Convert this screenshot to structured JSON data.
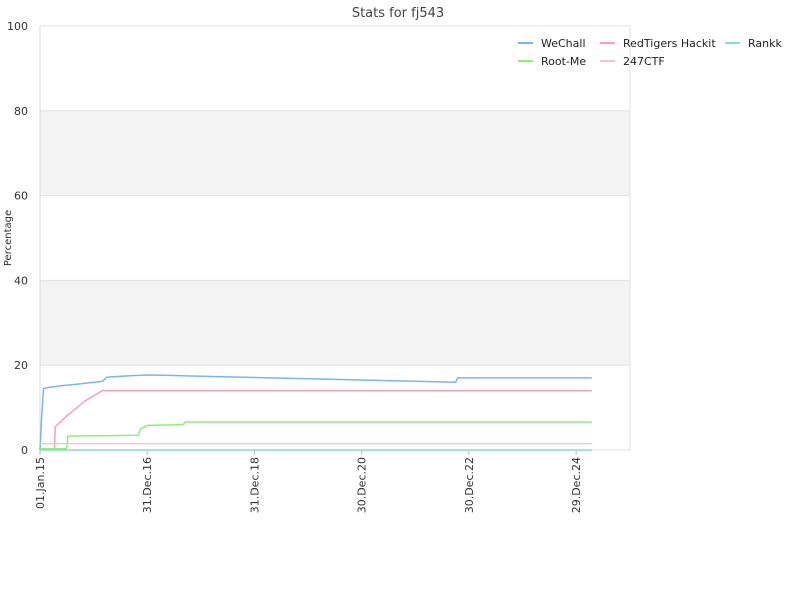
{
  "chart_data": {
    "type": "line",
    "title": "Stats for fj543",
    "xlabel": "",
    "ylabel": "Percentage",
    "ylim": [
      0,
      100
    ],
    "yticks": [
      "0",
      "20",
      "40",
      "60",
      "80",
      "100"
    ],
    "xlim": [
      "2015-01-01",
      "2025-12-31"
    ],
    "xticks": [
      {
        "label": "01.Jan.15",
        "date": "2015-01-01"
      },
      {
        "label": "31.Dec.16",
        "date": "2016-12-31"
      },
      {
        "label": "31.Dec.18",
        "date": "2018-12-31"
      },
      {
        "label": "30.Dec.20",
        "date": "2020-12-30"
      },
      {
        "label": "30.Dec.22",
        "date": "2022-12-30"
      },
      {
        "label": "29.Dec.24",
        "date": "2024-12-29"
      }
    ],
    "grid": "alternating horizontal bands",
    "legend_position": "top-right",
    "series": [
      {
        "name": "WeChall",
        "color": "#7cb5ec",
        "points": [
          [
            "2015-01-01",
            0
          ],
          [
            "2015-01-12",
            7.5
          ],
          [
            "2015-01-25",
            14.5
          ],
          [
            "2015-03-10",
            14.8
          ],
          [
            "2015-06-01",
            15.2
          ],
          [
            "2015-10-01",
            15.6
          ],
          [
            "2016-03-01",
            16.2
          ],
          [
            "2016-04-01",
            17.2
          ],
          [
            "2016-09-01",
            17.5
          ],
          [
            "2017-01-01",
            17.7
          ],
          [
            "2017-06-01",
            17.6
          ],
          [
            "2018-01-01",
            17.4
          ],
          [
            "2019-01-01",
            17.1
          ],
          [
            "2020-01-01",
            16.8
          ],
          [
            "2021-01-01",
            16.5
          ],
          [
            "2022-01-01",
            16.2
          ],
          [
            "2022-10-01",
            16.0
          ],
          [
            "2022-10-15",
            17.0
          ],
          [
            "2024-12-31",
            17.0
          ],
          [
            "2025-04-15",
            17.0
          ]
        ]
      },
      {
        "name": "RedTigers Hackit",
        "color": "#f7a1b5",
        "points": [
          [
            "2015-01-01",
            0.3
          ],
          [
            "2015-04-10",
            0.3
          ],
          [
            "2015-04-15",
            5.5
          ],
          [
            "2015-07-01",
            8.0
          ],
          [
            "2015-11-01",
            11.5
          ],
          [
            "2016-03-01",
            14.0
          ],
          [
            "2018-01-01",
            14.0
          ],
          [
            "2025-04-15",
            14.0
          ]
        ]
      },
      {
        "name": "Rankk",
        "color": "#80e0c8",
        "points": [
          [
            "2015-01-01",
            0
          ],
          [
            "2025-04-15",
            0
          ]
        ]
      },
      {
        "name": "Root-Me",
        "color": "#90ed7d",
        "points": [
          [
            "2015-01-01",
            0.3
          ],
          [
            "2015-07-01",
            0.3
          ],
          [
            "2015-07-10",
            3.3
          ],
          [
            "2016-05-01",
            3.4
          ],
          [
            "2016-11-01",
            3.5
          ],
          [
            "2016-11-15",
            5.0
          ],
          [
            "2017-01-01",
            5.8
          ],
          [
            "2017-09-01",
            6.0
          ],
          [
            "2017-09-15",
            6.6
          ],
          [
            "2025-04-15",
            6.6
          ]
        ]
      },
      {
        "name": "247CTF",
        "color": "#f9c4d2",
        "points": [
          [
            "2015-01-01",
            1.5
          ],
          [
            "2025-04-15",
            1.5
          ]
        ]
      }
    ]
  }
}
